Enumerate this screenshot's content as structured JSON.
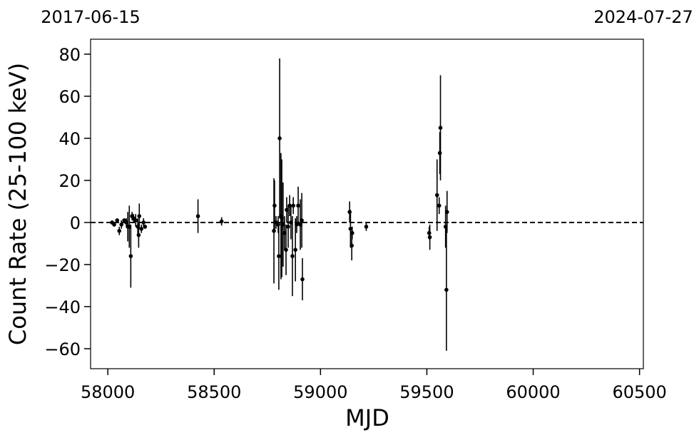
{
  "chart_data": {
    "type": "errorbar",
    "xlabel": "MJD",
    "ylabel": "Count Rate (25-100 keV)",
    "xlim": [
      57919,
      60518
    ],
    "ylim": [
      -69.5,
      87.1
    ],
    "xticks": [
      58000,
      58500,
      59000,
      59500,
      60000,
      60500
    ],
    "yticks": [
      {
        "value": -60,
        "label": "−60"
      },
      {
        "value": -40,
        "label": "−40"
      },
      {
        "value": -20,
        "label": "−20"
      },
      0,
      20,
      40,
      60,
      80
    ],
    "x2ticks": [
      {
        "value": 57919,
        "label": "2017-06-15"
      },
      {
        "value": 60518,
        "label": "2024-07-27"
      }
    ],
    "hline": 0,
    "hline_style": "dashed",
    "color": "#000000",
    "x": [
      58020,
      58030,
      58044,
      58054,
      58064,
      58077,
      58087,
      58094,
      58101,
      58108,
      58114,
      58121,
      58131,
      58141,
      58145,
      58148,
      58158,
      58168,
      58175,
      58424,
      58535,
      58781,
      58784,
      58791,
      58801,
      58804,
      58808,
      58814,
      58818,
      58824,
      58831,
      58838,
      58841,
      58848,
      58855,
      58861,
      58868,
      58872,
      58882,
      58888,
      58895,
      58905,
      58912,
      58915,
      59137,
      59141,
      59147,
      59149,
      59215,
      59511,
      59514,
      59548,
      59558,
      59561,
      59564,
      59588,
      59592,
      59595
    ],
    "values": [
      0,
      -1,
      1,
      -4,
      -1,
      1,
      0,
      -2,
      -2,
      -16,
      3,
      2,
      1,
      -2,
      -6,
      3,
      -3,
      0,
      -2,
      3,
      0.5,
      -4,
      8,
      0,
      -1,
      -16,
      40,
      3,
      2,
      -1,
      -5,
      -13,
      6,
      -2,
      8,
      0,
      -16,
      8,
      -13,
      -1,
      8,
      -1,
      1,
      -27,
      5,
      -3,
      -11,
      -5,
      -2,
      -5,
      -7,
      13,
      8,
      33,
      45,
      -2,
      -32,
      5
    ],
    "errors": [
      1,
      1,
      1,
      2,
      2,
      1,
      2,
      7,
      10,
      15,
      2,
      2,
      3,
      4,
      6,
      6,
      2,
      2,
      1,
      8,
      2,
      25,
      12,
      3,
      4,
      16,
      38,
      30,
      28,
      20,
      8,
      12,
      6,
      10,
      5,
      8,
      19,
      4,
      15,
      4,
      9,
      12,
      13,
      10,
      5,
      9,
      7,
      3,
      2,
      3,
      6,
      17,
      4,
      10,
      25,
      10,
      29,
      10
    ]
  }
}
